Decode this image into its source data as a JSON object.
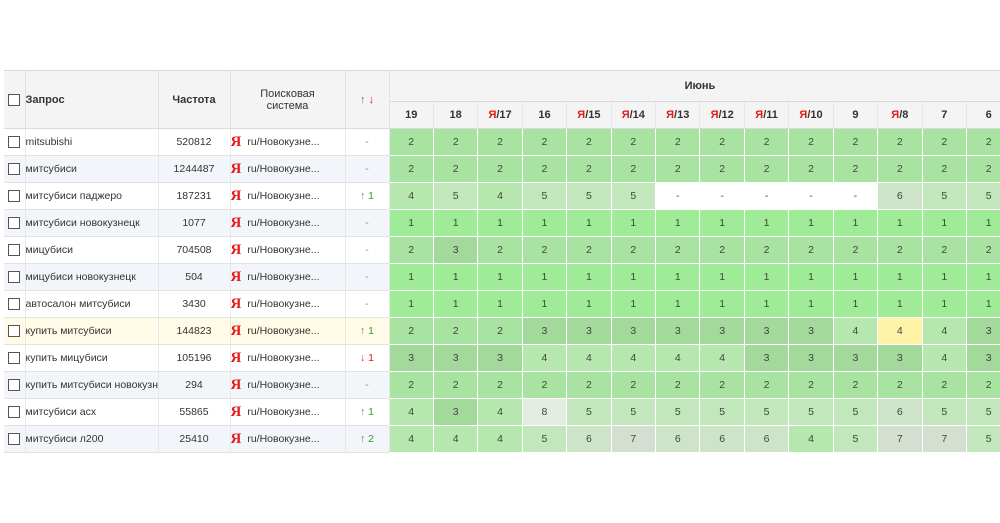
{
  "header": {
    "query": "Запрос",
    "frequency": "Частота",
    "engine_line1": "Поисковая",
    "engine_line2": "система",
    "change_up": "↑",
    "change_down": "↓",
    "month": "Июнь"
  },
  "date_columns": [
    {
      "ya": "",
      "day": "19"
    },
    {
      "ya": "",
      "day": "18"
    },
    {
      "ya": "Я",
      "day": "/17"
    },
    {
      "ya": "",
      "day": "16"
    },
    {
      "ya": "Я",
      "day": "/15"
    },
    {
      "ya": "Я",
      "day": "/14"
    },
    {
      "ya": "Я",
      "day": "/13"
    },
    {
      "ya": "Я",
      "day": "/12"
    },
    {
      "ya": "Я",
      "day": "/11"
    },
    {
      "ya": "Я",
      "day": "/10"
    },
    {
      "ya": "",
      "day": "9"
    },
    {
      "ya": "Я",
      "day": "/8"
    },
    {
      "ya": "",
      "day": "7"
    },
    {
      "ya": "",
      "day": "6"
    }
  ],
  "rows": [
    {
      "query": "mitsubishi",
      "freq": "520812",
      "engine_logo": "Я",
      "engine": "ru/Новокузне...",
      "change": "-",
      "change_dir": "none",
      "positions": [
        "2",
        "2",
        "2",
        "2",
        "2",
        "2",
        "2",
        "2",
        "2",
        "2",
        "2",
        "2",
        "2",
        "2"
      ]
    },
    {
      "query": "митсубиси",
      "freq": "1244487",
      "engine_logo": "Я",
      "engine": "ru/Новокузне...",
      "change": "-",
      "change_dir": "none",
      "positions": [
        "2",
        "2",
        "2",
        "2",
        "2",
        "2",
        "2",
        "2",
        "2",
        "2",
        "2",
        "2",
        "2",
        "2"
      ]
    },
    {
      "query": "митсубиси паджеро",
      "freq": "187231",
      "engine_logo": "Я",
      "engine": "ru/Новокузне...",
      "change": "↑ 1",
      "change_dir": "up",
      "positions": [
        "4",
        "5",
        "4",
        "5",
        "5",
        "5",
        "-",
        "-",
        "-",
        "-",
        "-",
        "6",
        "5",
        "5"
      ]
    },
    {
      "query": "митсубиси новокузнецк",
      "freq": "1077",
      "engine_logo": "Я",
      "engine": "ru/Новокузне...",
      "change": "-",
      "change_dir": "none",
      "positions": [
        "1",
        "1",
        "1",
        "1",
        "1",
        "1",
        "1",
        "1",
        "1",
        "1",
        "1",
        "1",
        "1",
        "1"
      ]
    },
    {
      "query": "мицубиси",
      "freq": "704508",
      "engine_logo": "Я",
      "engine": "ru/Новокузне...",
      "change": "-",
      "change_dir": "none",
      "positions": [
        "2",
        "3",
        "2",
        "2",
        "2",
        "2",
        "2",
        "2",
        "2",
        "2",
        "2",
        "2",
        "2",
        "2"
      ]
    },
    {
      "query": "мицубиси новокузнецк",
      "freq": "504",
      "engine_logo": "Я",
      "engine": "ru/Новокузне...",
      "change": "-",
      "change_dir": "none",
      "positions": [
        "1",
        "1",
        "1",
        "1",
        "1",
        "1",
        "1",
        "1",
        "1",
        "1",
        "1",
        "1",
        "1",
        "1"
      ]
    },
    {
      "query": "автосалон митсубиси",
      "freq": "3430",
      "engine_logo": "Я",
      "engine": "ru/Новокузне...",
      "change": "-",
      "change_dir": "none",
      "positions": [
        "1",
        "1",
        "1",
        "1",
        "1",
        "1",
        "1",
        "1",
        "1",
        "1",
        "1",
        "1",
        "1",
        "1"
      ]
    },
    {
      "query": "купить митсубиси",
      "freq": "144823",
      "engine_logo": "Я",
      "engine": "ru/Новокузне...",
      "change": "↑ 1",
      "change_dir": "up",
      "highlight": true,
      "positions": [
        "2",
        "2",
        "2",
        "3",
        "3",
        "3",
        "3",
        "3",
        "3",
        "3",
        "4",
        "4",
        "4",
        "3"
      ]
    },
    {
      "query": "купить мицубиси",
      "freq": "105196",
      "engine_logo": "Я",
      "engine": "ru/Новокузне...",
      "change": "↓ 1",
      "change_dir": "down",
      "positions": [
        "3",
        "3",
        "3",
        "4",
        "4",
        "4",
        "4",
        "4",
        "3",
        "3",
        "3",
        "3",
        "4",
        "3"
      ]
    },
    {
      "query": "купить митсубиси новокузнецк",
      "freq": "294",
      "engine_logo": "Я",
      "engine": "ru/Новокузне...",
      "change": "-",
      "change_dir": "none",
      "positions": [
        "2",
        "2",
        "2",
        "2",
        "2",
        "2",
        "2",
        "2",
        "2",
        "2",
        "2",
        "2",
        "2",
        "2"
      ]
    },
    {
      "query": "митсубиси асх",
      "freq": "55865",
      "engine_logo": "Я",
      "engine": "ru/Новокузне...",
      "change": "↑ 1",
      "change_dir": "up",
      "positions": [
        "4",
        "3",
        "4",
        "8",
        "5",
        "5",
        "5",
        "5",
        "5",
        "5",
        "5",
        "6",
        "5",
        "5"
      ]
    },
    {
      "query": "митсубиси л200",
      "freq": "25410",
      "engine_logo": "Я",
      "engine": "ru/Новокузне...",
      "change": "↑ 2",
      "change_dir": "up",
      "positions": [
        "4",
        "4",
        "4",
        "5",
        "6",
        "7",
        "6",
        "6",
        "6",
        "4",
        "5",
        "7",
        "7",
        "5"
      ]
    }
  ],
  "highlighted_cell": {
    "row": 7,
    "col": 11
  },
  "colors": {
    "header_bg": "#f4f4f4",
    "alt_row_bg": "#f2f6fa",
    "highlight_row_bg": "#fffbe6",
    "highlight_cell_bg": "#fff3a8",
    "yandex_red": "#e31b1b",
    "up_green": "#2ea232",
    "top_position_green": "#9feb98"
  }
}
